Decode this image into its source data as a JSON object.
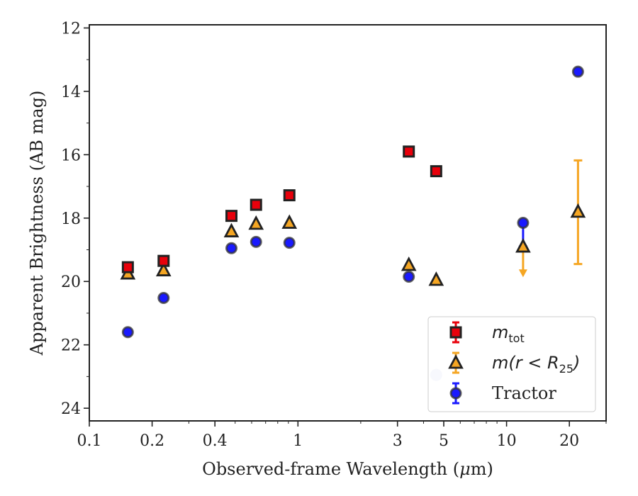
{
  "chart_data": {
    "type": "scatter",
    "xlabel_prefix": "Observed-frame Wavelength (",
    "xlabel_mu": "μ",
    "xlabel_suffix": "m)",
    "ylabel": "Apparent Brightness (AB mag)",
    "xscale": "log",
    "xlim": [
      0.1,
      30
    ],
    "ylim": [
      24.4,
      11.9
    ],
    "x_ticks": [
      0.1,
      0.2,
      0.4,
      1,
      3,
      5,
      10,
      20
    ],
    "x_tick_labels": [
      "0.1",
      "0.2",
      "0.4",
      "1",
      "3",
      "5",
      "10",
      "20"
    ],
    "y_ticks": [
      12,
      14,
      16,
      18,
      20,
      22,
      24
    ],
    "y_tick_labels": [
      "12",
      "14",
      "16",
      "18",
      "20",
      "22",
      "24"
    ],
    "grid": false,
    "legend_position": "lower right",
    "colors": {
      "m_tot": "#e8000b",
      "m_r25": "#f5a623",
      "tractor": "#1a1aff",
      "edge": "#222222",
      "tractor_edge": "#333333"
    },
    "series": [
      {
        "id": "m_tot",
        "legend_base": "m",
        "legend_sub": "tot",
        "marker": "square",
        "points": [
          {
            "x": 0.153,
            "y": 19.55
          },
          {
            "x": 0.227,
            "y": 19.35
          },
          {
            "x": 0.48,
            "y": 17.93
          },
          {
            "x": 0.63,
            "y": 17.58
          },
          {
            "x": 0.91,
            "y": 17.28
          },
          {
            "x": 3.4,
            "y": 15.9
          },
          {
            "x": 4.6,
            "y": 16.52
          }
        ]
      },
      {
        "id": "m_r25",
        "legend_base": "m(r < R",
        "legend_sub": "25",
        "legend_close": ")",
        "marker": "triangle",
        "points": [
          {
            "x": 0.153,
            "y": 19.75
          },
          {
            "x": 0.227,
            "y": 19.65
          },
          {
            "x": 0.48,
            "y": 18.42
          },
          {
            "x": 0.63,
            "y": 18.18
          },
          {
            "x": 0.91,
            "y": 18.15
          },
          {
            "x": 3.4,
            "y": 19.48
          },
          {
            "x": 4.6,
            "y": 19.95
          },
          {
            "x": 12.0,
            "y": 18.9,
            "upper_limit_to": 19.8
          },
          {
            "x": 22.0,
            "y": 17.8,
            "err_low": 16.18,
            "err_high": 19.45
          }
        ]
      },
      {
        "id": "tractor",
        "legend_label": "Tractor",
        "marker": "circle",
        "points": [
          {
            "x": 0.153,
            "y": 21.6
          },
          {
            "x": 0.227,
            "y": 20.52
          },
          {
            "x": 0.48,
            "y": 18.95
          },
          {
            "x": 0.63,
            "y": 18.75
          },
          {
            "x": 0.91,
            "y": 18.78
          },
          {
            "x": 3.4,
            "y": 19.85
          },
          {
            "x": 4.6,
            "y": 22.95
          },
          {
            "x": 12.0,
            "y": 18.15,
            "err_low": 18.15,
            "err_high": 18.9
          },
          {
            "x": 22.0,
            "y": 13.38
          }
        ]
      }
    ]
  }
}
